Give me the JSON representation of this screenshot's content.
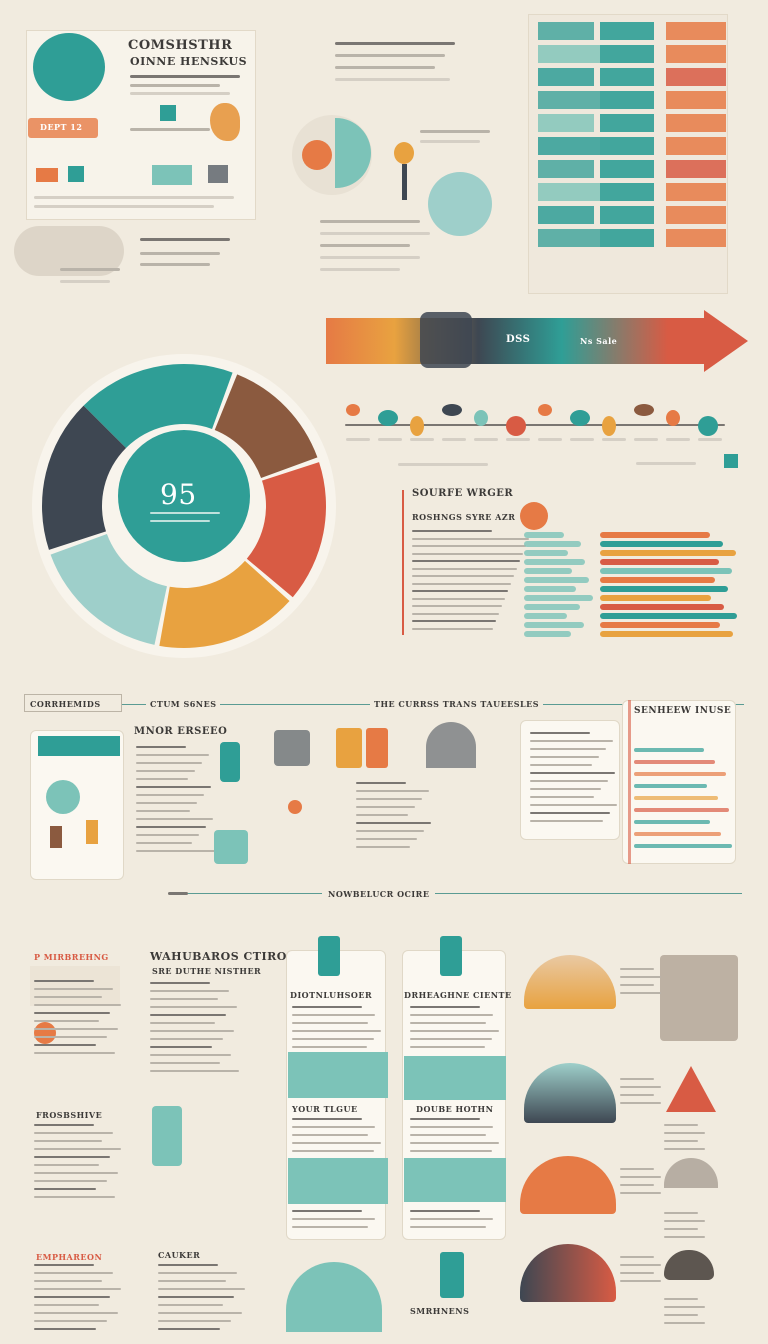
{
  "header": {
    "title_line1": "COMSHSTHR",
    "title_line2": "OINNE  HENSKUS",
    "sub_label": "DEPT 12"
  },
  "donut": {
    "center_value": "95"
  },
  "arrow": {
    "label_a": "DSS",
    "label_b": "Ns Sale"
  },
  "side_panel": {
    "title": "SOURFE WRGER",
    "subtitle": "ROSHNGS SYRE  AZR"
  },
  "section2": {
    "left_tab": "CORRHEMIDS",
    "header": "CTUM  S6NES",
    "mid_banner": "THE CURRSS TRANS TAUEESLES",
    "card_title": "MNOR ERSEEO",
    "right_title": "SENHEEW INUSE"
  },
  "divider": {
    "label": "NOWBELUCR OCIRE"
  },
  "section3": {
    "left_head": "P MIRBREHNG",
    "center_head": "WAHUBAROS CTIRO",
    "center_sub": "SRE DUTHE  NISTHER",
    "col1_head": "DIOTNLUHSOER",
    "col2_head": "DRHEAGHNE CIENTE",
    "col1_mid": "YOUR TLGUE",
    "col2_mid": "DOUBE HOTHN",
    "left_mid": "FROSBSHIVE",
    "left_low": "EMPHAREON",
    "mid_low": "CAUKER",
    "col2_low": "SMRHNENS"
  },
  "colors": {
    "teal": "#2f9e96",
    "orange": "#e67a45",
    "red": "#d85b44",
    "amber": "#e8a240",
    "slate": "#3e4752",
    "background": "#f1ebdf"
  }
}
